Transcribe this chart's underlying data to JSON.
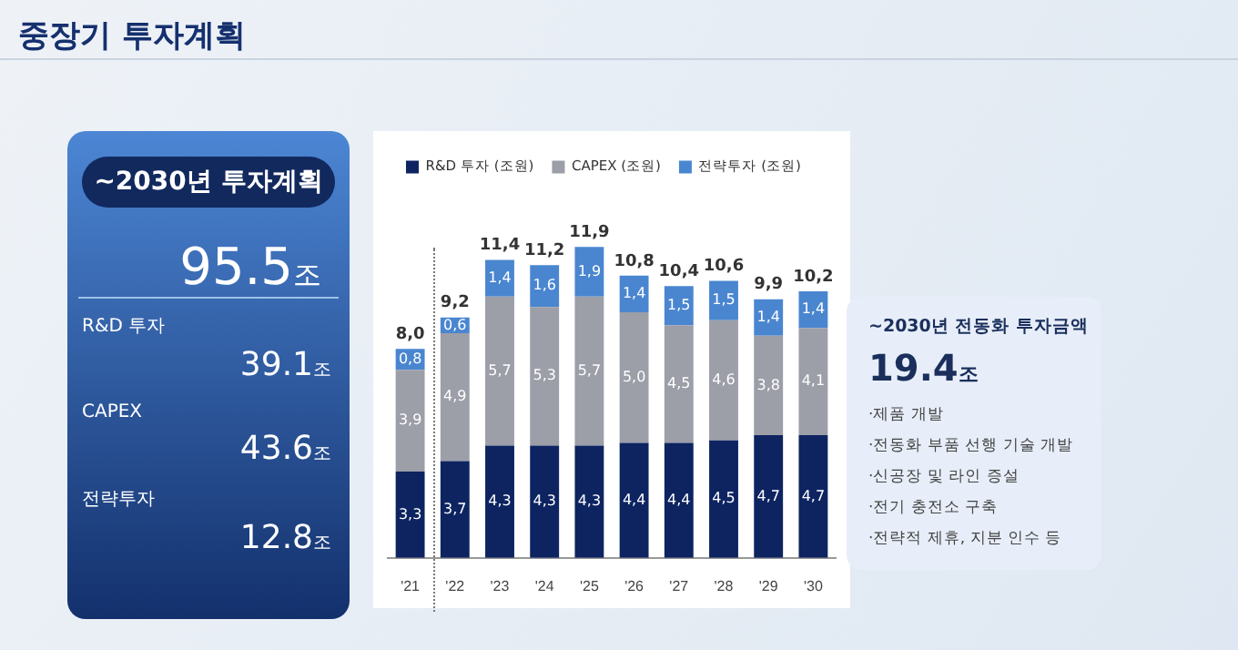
{
  "chart_data": [
    {
      "type": "other",
      "title": "~2030년 투자계획",
      "annotations": [
        "95.5조",
        "R&D 투자",
        "39.1조",
        "CAPEX",
        "43.6조",
        "전략투자",
        "12.8조"
      ]
    },
    {
      "type": "bar",
      "title": "중장기 투자계획",
      "stacked": true,
      "legend": "top left",
      "tick_labels": "x",
      "grid": false,
      "categories": [
        "'21",
        "'22",
        "'23",
        "'24",
        "'25",
        "'26",
        "'27",
        "'28",
        "'29",
        "'30"
      ],
      "series": [
        {
          "name": "R&D 투자 (조원)",
          "color": "#0d2461",
          "values": [
            3.3,
            3.7,
            4.3,
            4.3,
            4.3,
            4.4,
            4.4,
            4.5,
            4.7,
            4.7
          ],
          "value_labels": [
            "3,3",
            "3,7",
            "4,3",
            "4,3",
            "4,3",
            "4,4",
            "4,4",
            "4,5",
            "4,7",
            "4,7"
          ]
        },
        {
          "name": "CAPEX (조원)",
          "color": "#9c9ea8",
          "values": [
            3.9,
            4.9,
            5.7,
            5.3,
            5.7,
            5.0,
            4.5,
            4.6,
            3.8,
            4.1
          ],
          "value_labels": [
            "3,9",
            "4,9",
            "5,7",
            "5,3",
            "5,7",
            "5,0",
            "4,5",
            "4,6",
            "3,8",
            "4,1"
          ]
        },
        {
          "name": "전략투자 (조원)",
          "color": "#4a86d0",
          "values": [
            0.8,
            0.6,
            1.4,
            1.6,
            1.9,
            1.4,
            1.5,
            1.5,
            1.4,
            1.4
          ],
          "value_labels": [
            "0,8",
            "0,6",
            "1,4",
            "1,6",
            "1,9",
            "1,4",
            "1,5",
            "1,5",
            "1,4",
            "1,4"
          ]
        }
      ],
      "totals": [
        "8,0",
        "9,2",
        "11,4",
        "11,2",
        "11,9",
        "10,8",
        "10,4",
        "10,6",
        "9,9",
        "10,2"
      ]
    },
    {
      "type": "other",
      "title": "~2030년 전동화 투자금액",
      "annotations": [
        "19.4조",
        "·제품 개발",
        "·전동화 부품 선행 기술 개발",
        "·신공장 및 라인 증설",
        "·전기 충전소 구축",
        "·전략적 제휴, 지분 인수 등"
      ]
    }
  ]
}
